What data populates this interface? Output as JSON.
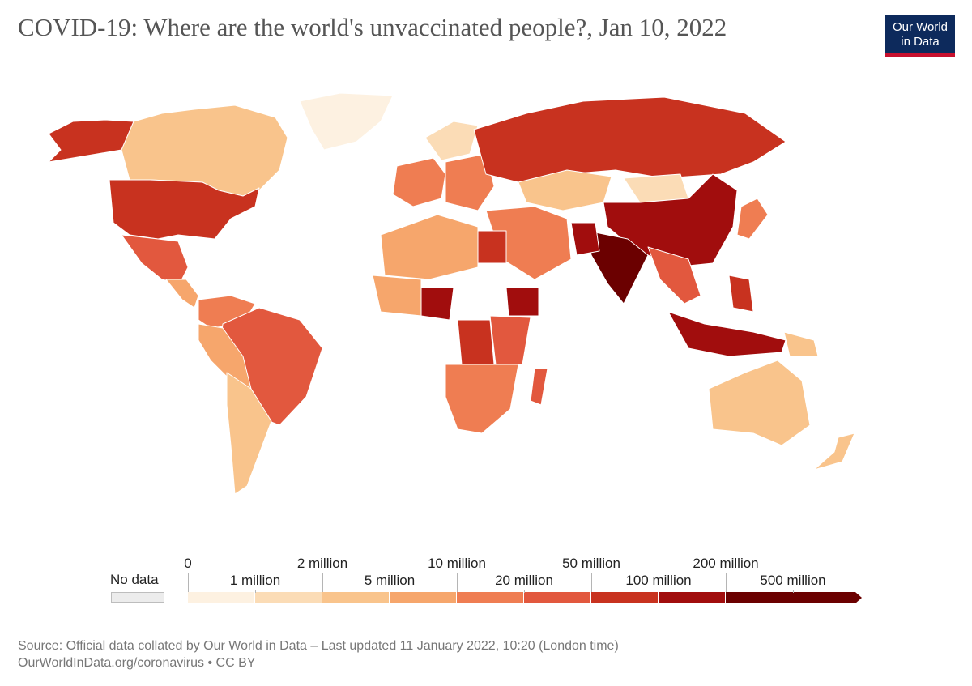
{
  "header": {
    "title": "COVID-19: Where are the world's unvaccinated people?, Jan 10, 2022",
    "logo_line1": "Our World",
    "logo_line2": "in Data"
  },
  "colors": {
    "nodata": "#ececec",
    "ocean": "#ffffff",
    "border": "#ffffff",
    "bins": [
      "#fdf1e1",
      "#fbdcb6",
      "#f9c48c",
      "#f6a66c",
      "#ef7d52",
      "#e2583e",
      "#c8321f",
      "#a10d0d",
      "#6b0000"
    ]
  },
  "legend": {
    "nodata_label": "No data",
    "upper_labels": [
      "0",
      "2 million",
      "10 million",
      "50 million",
      "200 million"
    ],
    "lower_labels": [
      "1 million",
      "5 million",
      "20 million",
      "100 million",
      "500 million"
    ]
  },
  "footer": {
    "source": "Source: Official data collated by Our World in Data – Last updated 11 January 2022, 10:20 (London time)",
    "url": "OurWorldInData.org/coronavirus • CC BY"
  },
  "map_data": {
    "metric": "unvaccinated people",
    "regions": [
      {
        "name": "Alaska",
        "bin": 6
      },
      {
        "name": "Canada",
        "bin": 2
      },
      {
        "name": "Greenland",
        "bin": 0
      },
      {
        "name": "United States",
        "bin": 6
      },
      {
        "name": "Mexico",
        "bin": 5
      },
      {
        "name": "Central America",
        "bin": 3
      },
      {
        "name": "Colombia/Venezuela",
        "bin": 4
      },
      {
        "name": "Brazil",
        "bin": 5
      },
      {
        "name": "Peru/Bolivia",
        "bin": 3
      },
      {
        "name": "Argentina/Chile",
        "bin": 2
      },
      {
        "name": "Western Europe",
        "bin": 4
      },
      {
        "name": "Scandinavia",
        "bin": 1
      },
      {
        "name": "Eastern Europe",
        "bin": 4
      },
      {
        "name": "Russia",
        "bin": 6
      },
      {
        "name": "Kazakhstan",
        "bin": 2
      },
      {
        "name": "Middle East",
        "bin": 4
      },
      {
        "name": "North Africa",
        "bin": 3
      },
      {
        "name": "Egypt",
        "bin": 6
      },
      {
        "name": "West Africa",
        "bin": 3
      },
      {
        "name": "Nigeria",
        "bin": 7
      },
      {
        "name": "Ethiopia",
        "bin": 7
      },
      {
        "name": "DR Congo",
        "bin": 6
      },
      {
        "name": "East Africa",
        "bin": 5
      },
      {
        "name": "Southern Africa",
        "bin": 4
      },
      {
        "name": "Madagascar",
        "bin": 5
      },
      {
        "name": "Mongolia",
        "bin": 1
      },
      {
        "name": "China",
        "bin": 7
      },
      {
        "name": "India",
        "bin": 8
      },
      {
        "name": "Pakistan",
        "bin": 7
      },
      {
        "name": "Southeast Asia",
        "bin": 5
      },
      {
        "name": "Japan",
        "bin": 4
      },
      {
        "name": "Indonesia",
        "bin": 7
      },
      {
        "name": "Philippines",
        "bin": 6
      },
      {
        "name": "Papua New Guinea",
        "bin": 2
      },
      {
        "name": "Australia",
        "bin": 2
      },
      {
        "name": "New Zealand",
        "bin": 2
      }
    ]
  }
}
